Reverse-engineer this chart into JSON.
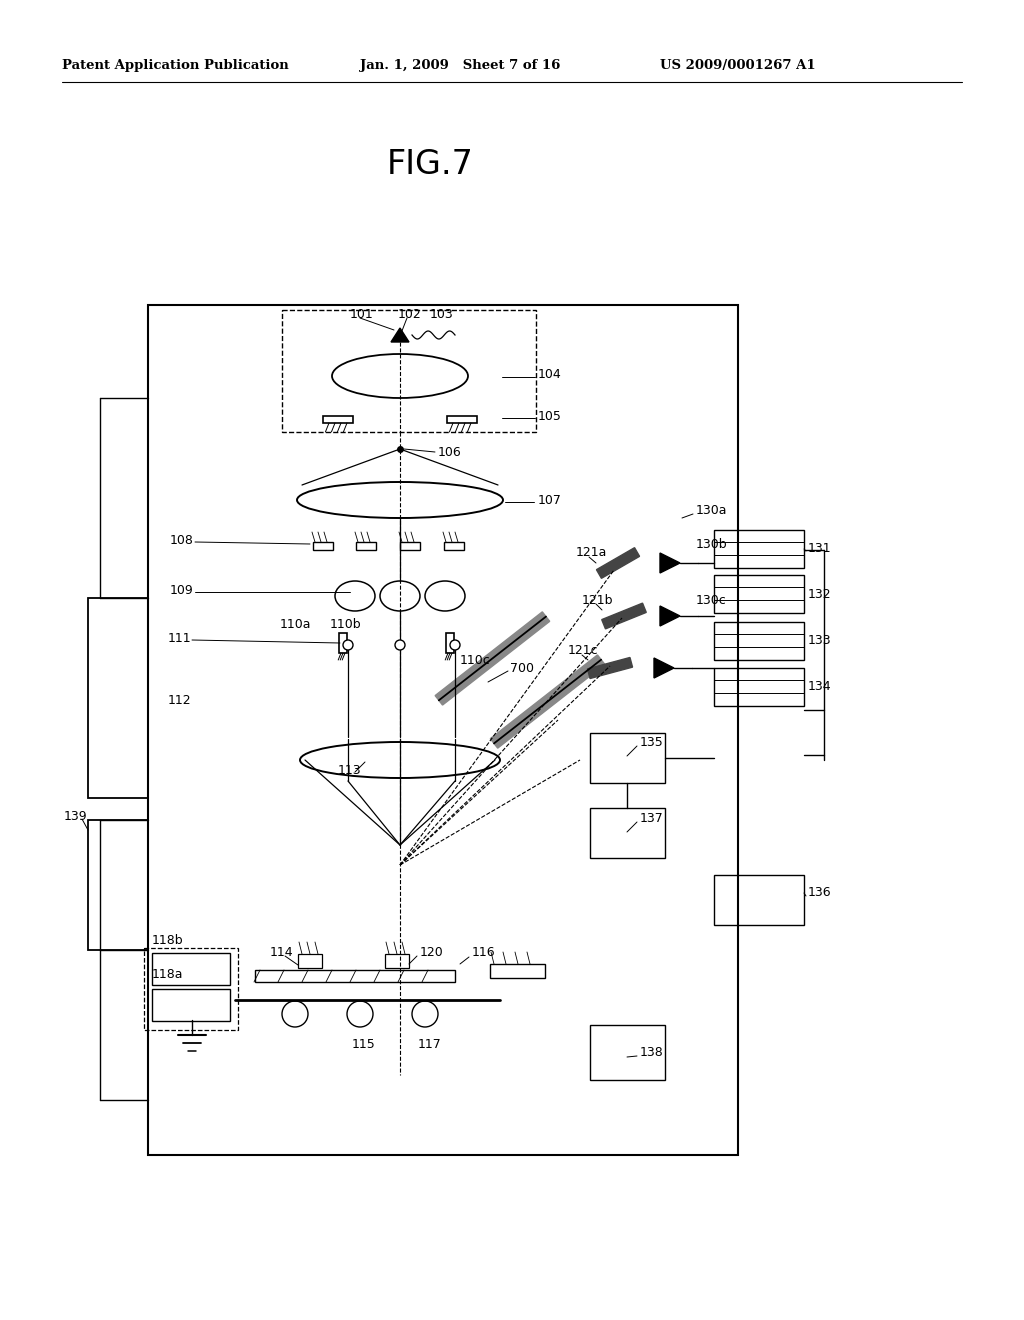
{
  "bg_color": "#ffffff",
  "lc": "#000000",
  "lw": 1.2,
  "header_left": "Patent Application Publication",
  "header_mid": "Jan. 1, 2009   Sheet 7 of 16",
  "header_right": "US 2009/0001267 A1",
  "fig_title": "FIG.7"
}
